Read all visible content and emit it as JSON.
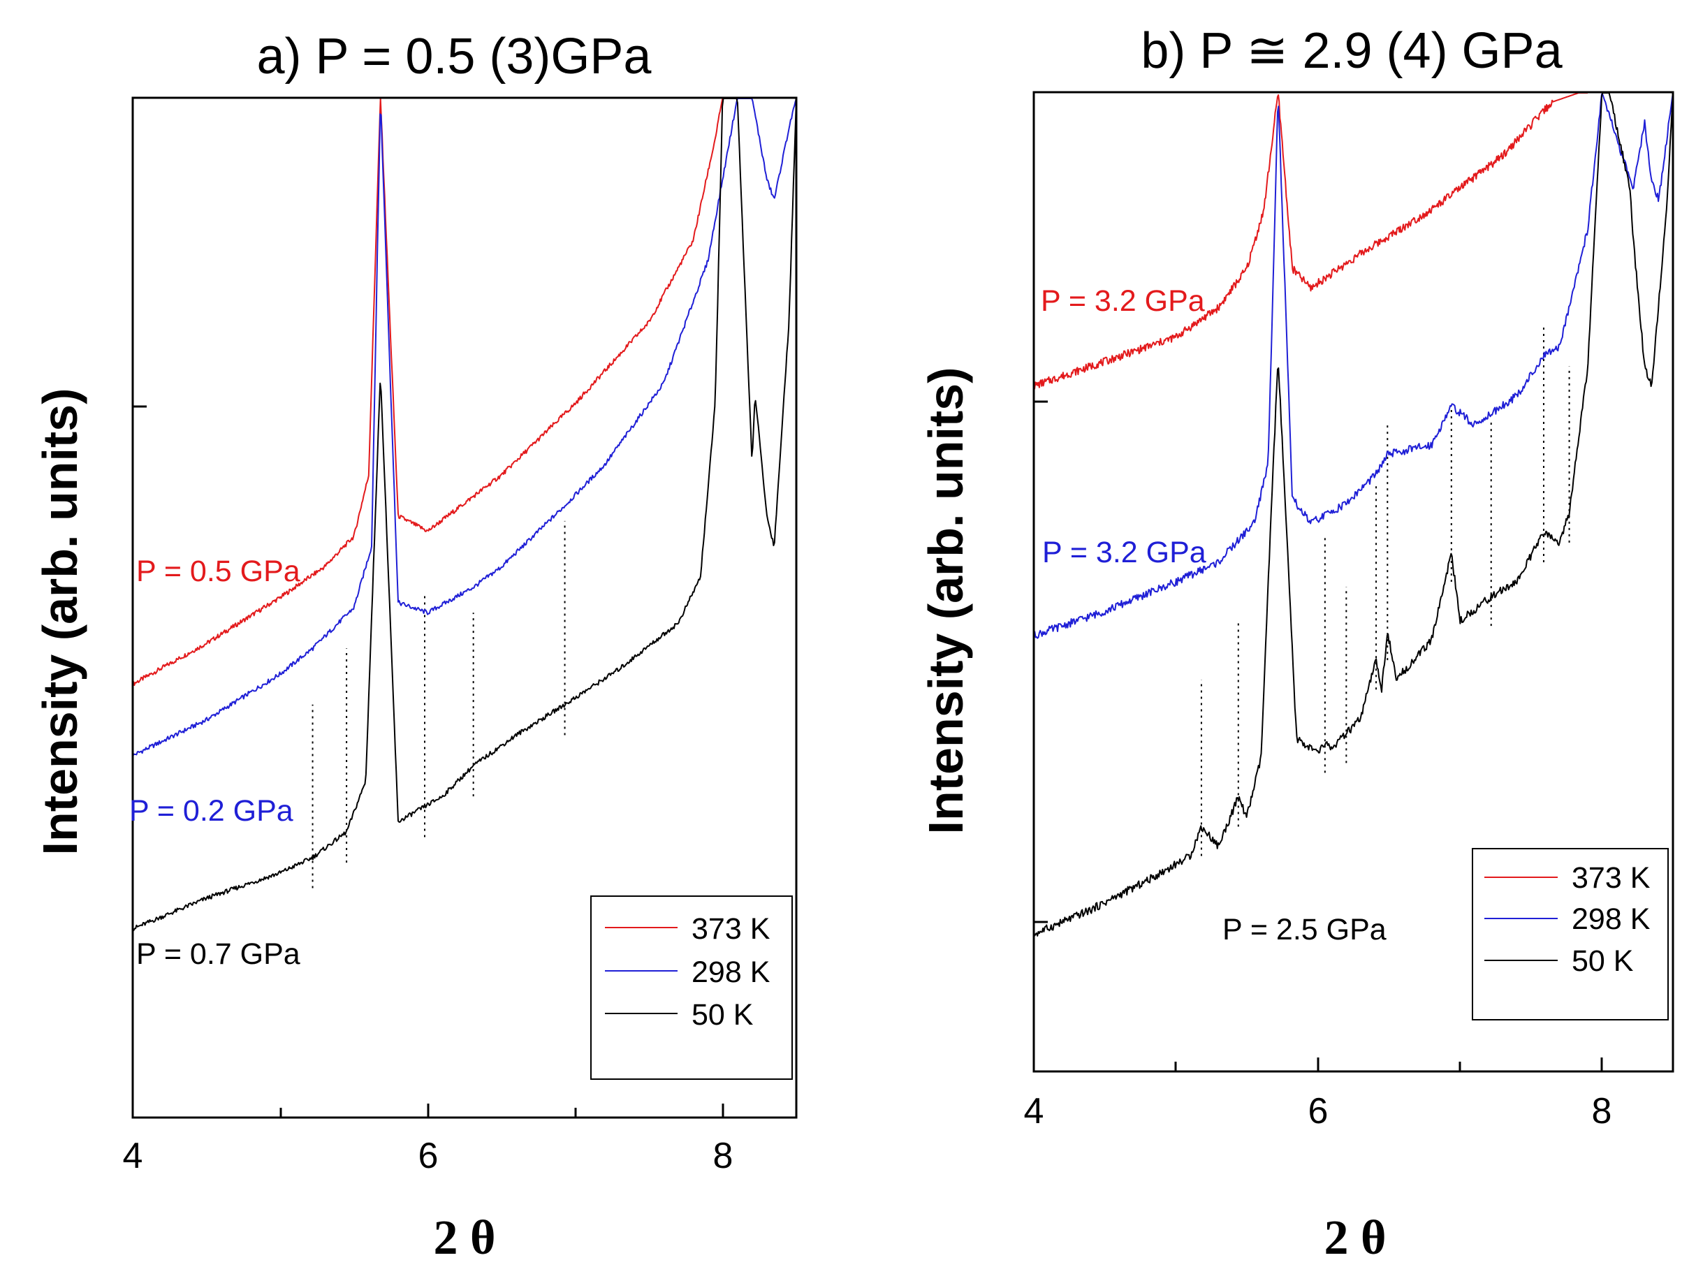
{
  "chart_data": [
    {
      "type": "line",
      "title": "a) P = 0.5 (3)GPa",
      "xlabel": "2 θ",
      "ylabel": "Intensity (arb. units)",
      "xlim": [
        4,
        8.5
      ],
      "ylim": [
        0,
        100
      ],
      "xticks": [
        "4",
        "6",
        "8"
      ],
      "grid": false,
      "legend_position": "bottom-right",
      "legend": [
        {
          "label": "373 K",
          "color": "#e31a1c"
        },
        {
          "label": "298 K",
          "color": "#1f1fd6"
        },
        {
          "label": "50 K",
          "color": "#000000"
        }
      ],
      "annotations": [
        {
          "text": "P = 0.5 GPa",
          "color": "#e31a1c"
        },
        {
          "text": "P = 0.2 GPa",
          "color": "#1f1fd6"
        },
        {
          "text": "P = 0.7 GPa",
          "color": "#000000"
        }
      ],
      "dashed_markers": [
        5.22,
        5.45,
        5.98,
        6.31,
        6.93
      ],
      "series": [
        {
          "name": "373 K",
          "color": "#e31a1c",
          "x": [
            4.0,
            4.5,
            5.0,
            5.3,
            5.5,
            5.6,
            5.68,
            5.8,
            6.0,
            6.5,
            7.0,
            7.5,
            7.8,
            7.95,
            8.0
          ],
          "y": [
            42.5,
            46.5,
            51,
            54,
            57,
            63,
            100,
            59,
            57.5,
            63,
            70,
            78,
            86,
            96,
            100
          ]
        },
        {
          "name": "298 K",
          "color": "#1f1fd6",
          "x": [
            4.0,
            4.5,
            5.0,
            5.22,
            5.5,
            5.62,
            5.68,
            5.8,
            6.0,
            6.31,
            6.5,
            6.93,
            7.2,
            7.6,
            7.9,
            8.1,
            8.2,
            8.3,
            8.35,
            8.45,
            8.5
          ],
          "y": [
            35.5,
            39,
            43.5,
            46,
            50,
            56,
            100,
            50.5,
            49.5,
            52,
            54,
            60,
            64,
            72,
            84,
            100,
            100,
            92,
            90,
            97,
            100
          ]
        },
        {
          "name": "50 K",
          "color": "#000000",
          "x": [
            4.0,
            4.5,
            5.0,
            5.22,
            5.45,
            5.58,
            5.68,
            5.8,
            5.98,
            6.1,
            6.31,
            6.6,
            6.93,
            7.3,
            7.7,
            7.85,
            7.95,
            8.0,
            8.1,
            8.2,
            8.22,
            8.3,
            8.35,
            8.45,
            8.5
          ],
          "y": [
            18.5,
            21.5,
            24,
            25.5,
            28,
            33,
            73,
            29,
            30.5,
            31.5,
            34.5,
            37.5,
            40.5,
            44,
            48.5,
            53,
            70,
            100,
            100,
            64,
            71,
            59,
            56,
            78,
            100
          ]
        }
      ]
    },
    {
      "type": "line",
      "title": "b) P ≅ 2.9 (4) GPa",
      "xlabel": "2 θ",
      "ylabel": "Intensity (arb. units)",
      "xlim": [
        4,
        8.5
      ],
      "ylim": [
        0,
        100
      ],
      "xticks": [
        "4",
        "6",
        "8"
      ],
      "grid": false,
      "legend_position": "bottom-right",
      "legend": [
        {
          "label": "373 K",
          "color": "#e31a1c"
        },
        {
          "label": "298 K",
          "color": "#1f1fd6"
        },
        {
          "label": "50 K",
          "color": "#000000"
        }
      ],
      "annotations": [
        {
          "text": "P = 3.2 GPa",
          "color": "#e31a1c"
        },
        {
          "text": "P = 3.2 GPa",
          "color": "#1f1fd6"
        },
        {
          "text": "P = 2.5 GPa",
          "color": "#000000"
        }
      ],
      "dashed_markers": [
        5.18,
        5.44,
        6.05,
        6.2,
        6.41,
        6.49,
        6.94,
        7.22,
        7.59,
        7.77
      ],
      "series": [
        {
          "name": "373 K",
          "color": "#e31a1c",
          "x": [
            4.0,
            4.5,
            5.0,
            5.3,
            5.5,
            5.62,
            5.72,
            5.82,
            5.95,
            6.3,
            6.8,
            7.3,
            7.65,
            7.85,
            7.9
          ],
          "y": [
            70,
            72.5,
            75,
            78,
            82,
            88,
            100,
            82,
            80,
            83.5,
            88,
            93.5,
            99,
            100,
            100
          ]
        },
        {
          "name": "298 K",
          "color": "#1f1fd6",
          "x": [
            4.0,
            4.5,
            5.0,
            5.3,
            5.55,
            5.65,
            5.72,
            5.82,
            5.95,
            6.2,
            6.41,
            6.49,
            6.8,
            6.94,
            7.1,
            7.4,
            7.59,
            7.7,
            7.9,
            8.0,
            8.22,
            8.3,
            8.35,
            8.4,
            8.5
          ],
          "y": [
            44.5,
            47,
            50,
            52,
            56,
            62,
            100,
            58.5,
            56,
            58,
            61,
            63,
            64,
            68,
            66,
            69,
            73,
            74,
            86,
            100,
            90,
            97,
            91,
            89,
            100
          ]
        },
        {
          "name": "50 K",
          "color": "#000000",
          "x": [
            4.0,
            4.4,
            4.8,
            5.1,
            5.18,
            5.3,
            5.44,
            5.5,
            5.6,
            5.68,
            5.72,
            5.78,
            5.85,
            6.0,
            6.05,
            6.1,
            6.2,
            6.3,
            6.41,
            6.45,
            6.49,
            6.55,
            6.8,
            6.94,
            7.0,
            7.22,
            7.4,
            7.59,
            7.7,
            7.77,
            7.9,
            8.0,
            8.05,
            8.2,
            8.22,
            8.3,
            8.35,
            8.45,
            8.5
          ],
          "y": [
            14,
            16.5,
            19.5,
            22,
            25,
            23,
            28,
            26,
            32,
            60,
            73,
            55,
            34,
            32.5,
            33.5,
            33,
            34.5,
            36,
            42,
            39,
            45,
            40,
            44,
            53,
            46,
            48.5,
            50,
            55,
            54,
            57,
            72,
            100,
            100,
            90,
            85,
            72,
            70,
            87,
            100
          ]
        }
      ]
    }
  ]
}
